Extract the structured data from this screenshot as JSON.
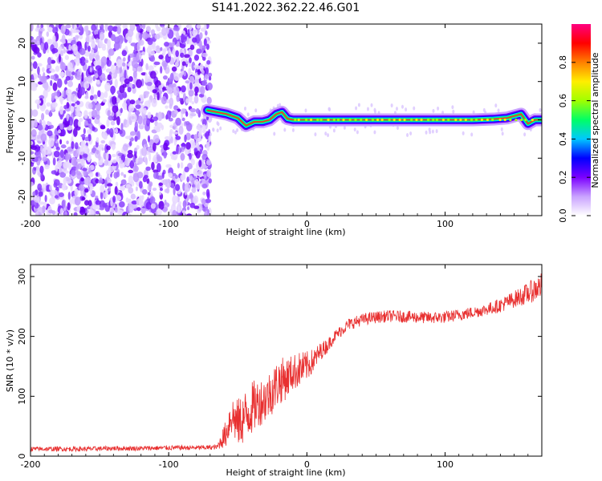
{
  "title": "S141.2022.362.22.46.G01",
  "chart_data": [
    {
      "type": "heatmap",
      "xlabel": "Height of straight line (km)",
      "ylabel": "Frequency (Hz)",
      "xlim": [
        -200,
        170
      ],
      "ylim": [
        -25,
        25
      ],
      "xticks": [
        "-200",
        "-100",
        "0",
        "100"
      ],
      "xtick_values": [
        -200,
        -100,
        0,
        100
      ],
      "yticks": [
        "20",
        "10",
        "0",
        "-10",
        "-20"
      ],
      "ytick_values": [
        20,
        10,
        0,
        -10,
        -20
      ],
      "grid": false,
      "colorbar": {
        "label": "Normalized spectral amplitude",
        "range": [
          0.0,
          1.0
        ],
        "ticks": [
          "0.0",
          "0.2",
          "0.4",
          "0.6",
          "0.8"
        ],
        "tick_values": [
          0.0,
          0.2,
          0.4,
          0.6,
          0.8
        ],
        "colors": [
          "#ffffff",
          "#c9a2ff",
          "#7b00ff",
          "#0000ff",
          "#00c8ff",
          "#00ff66",
          "#a0ff00",
          "#ffee00",
          "#ff8000",
          "#ff0000",
          "#ff0080"
        ]
      },
      "signal_trace": {
        "x": [
          -72,
          -65,
          -58,
          -50,
          -44,
          -38,
          -32,
          -27,
          -22,
          -18,
          -14,
          -10,
          0,
          20,
          40,
          60,
          80,
          100,
          120,
          135,
          145,
          150,
          155,
          160,
          165,
          170
        ],
        "y": [
          2.5,
          2.0,
          1.5,
          0.5,
          -1.5,
          -0.5,
          -0.5,
          0.0,
          1.5,
          2.0,
          0.3,
          0.0,
          0.0,
          0.0,
          0.0,
          0.0,
          0.0,
          0.0,
          0.0,
          0.2,
          0.5,
          1.0,
          1.5,
          -1.0,
          0.0,
          0.0
        ]
      },
      "noise_region": {
        "x_from": -200,
        "x_to": -70
      }
    },
    {
      "type": "line",
      "xlabel": "Height of straight line (km)",
      "ylabel": "SNR (10 * v/v)",
      "xlim": [
        -200,
        170
      ],
      "ylim": [
        0,
        320
      ],
      "xticks": [
        "-200",
        "-100",
        "0",
        "100"
      ],
      "xtick_values": [
        -200,
        -100,
        0,
        100
      ],
      "yticks": [
        "0",
        "100",
        "200",
        "300"
      ],
      "ytick_values": [
        0,
        100,
        200,
        300
      ],
      "grid": false,
      "series": [
        {
          "color": "#e83030",
          "x": [
            -200,
            -180,
            -160,
            -140,
            -120,
            -100,
            -80,
            -65,
            -58,
            -55,
            -50,
            -45,
            -40,
            -35,
            -30,
            -25,
            -20,
            -15,
            -10,
            -5,
            0,
            5,
            10,
            15,
            20,
            25,
            30,
            40,
            50,
            60,
            70,
            80,
            90,
            100,
            110,
            120,
            130,
            140,
            150,
            160,
            170
          ],
          "values": [
            12,
            12,
            12,
            13,
            13,
            14,
            14,
            15,
            40,
            70,
            55,
            65,
            80,
            90,
            95,
            110,
            125,
            130,
            140,
            145,
            150,
            160,
            175,
            185,
            200,
            210,
            220,
            228,
            232,
            234,
            233,
            232,
            231,
            232,
            236,
            240,
            245,
            252,
            262,
            272,
            285
          ],
          "noise_amplitude": [
            4,
            4,
            4,
            4,
            4,
            4,
            4,
            4,
            25,
            35,
            40,
            45,
            45,
            40,
            40,
            40,
            40,
            35,
            30,
            30,
            25,
            20,
            15,
            12,
            10,
            10,
            10,
            10,
            10,
            10,
            10,
            10,
            10,
            10,
            10,
            10,
            10,
            12,
            14,
            18,
            22
          ]
        }
      ]
    }
  ]
}
